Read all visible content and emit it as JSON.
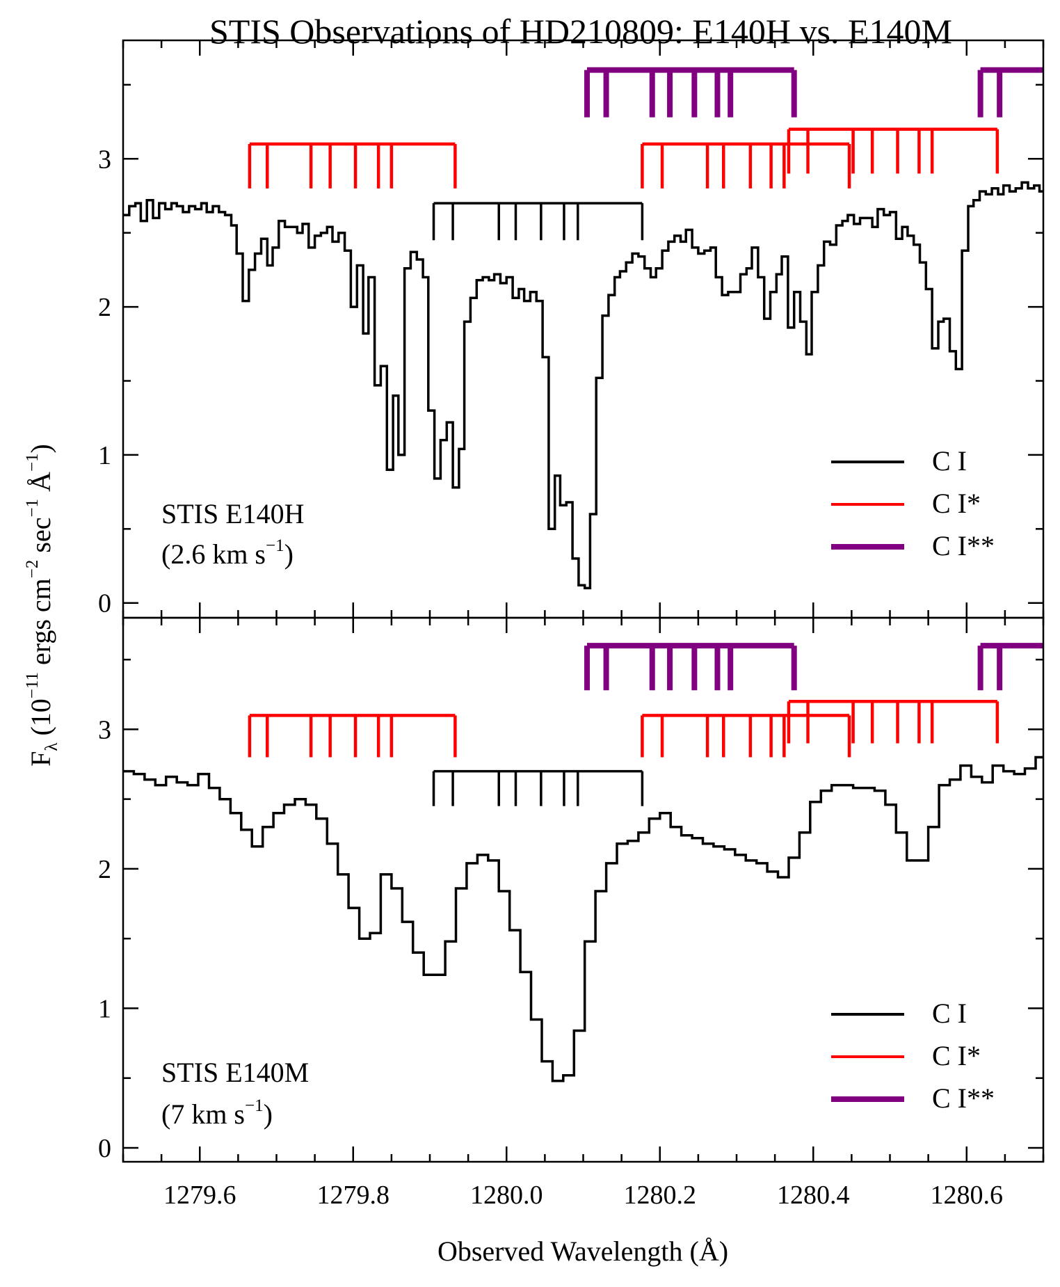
{
  "chart_data": [
    {
      "type": "line",
      "title": "STIS Observations of HD210809: E140H vs. E140M",
      "panel_label": "STIS E140H",
      "resolution_prefix": "(2.6 km s",
      "resolution_exp": "−1",
      "resolution_suffix": ")",
      "xlim": [
        1279.5,
        1280.7
      ],
      "ylim": [
        -0.1,
        3.8
      ],
      "xticks": [
        1279.6,
        1279.8,
        1280.0,
        1280.2,
        1280.4,
        1280.6
      ],
      "yticks": [
        0,
        1,
        2,
        3
      ],
      "series": [
        {
          "name": "E140H spectrum",
          "x": [
            1279.5,
            1279.508,
            1279.516,
            1279.523,
            1279.531,
            1279.539,
            1279.547,
            1279.555,
            1279.563,
            1279.57,
            1279.578,
            1279.586,
            1279.594,
            1279.602,
            1279.609,
            1279.617,
            1279.625,
            1279.633,
            1279.641,
            1279.648,
            1279.656,
            1279.664,
            1279.672,
            1279.68,
            1279.688,
            1279.695,
            1279.703,
            1279.711,
            1279.719,
            1279.727,
            1279.734,
            1279.742,
            1279.75,
            1279.758,
            1279.766,
            1279.773,
            1279.781,
            1279.789,
            1279.797,
            1279.805,
            1279.813,
            1279.82,
            1279.828,
            1279.836,
            1279.844,
            1279.852,
            1279.859,
            1279.867,
            1279.875,
            1279.883,
            1279.891,
            1279.898,
            1279.906,
            1279.914,
            1279.922,
            1279.93,
            1279.938,
            1279.945,
            1279.953,
            1279.961,
            1279.969,
            1279.977,
            1279.984,
            1279.992,
            1280.0,
            1280.008,
            1280.016,
            1280.023,
            1280.031,
            1280.039,
            1280.047,
            1280.055,
            1280.063,
            1280.07,
            1280.078,
            1280.086,
            1280.094,
            1280.102,
            1280.109,
            1280.117,
            1280.125,
            1280.133,
            1280.141,
            1280.148,
            1280.156,
            1280.164,
            1280.172,
            1280.18,
            1280.188,
            1280.195,
            1280.203,
            1280.211,
            1280.219,
            1280.227,
            1280.234,
            1280.242,
            1280.25,
            1280.258,
            1280.266,
            1280.273,
            1280.281,
            1280.289,
            1280.297,
            1280.305,
            1280.313,
            1280.32,
            1280.328,
            1280.336,
            1280.344,
            1280.352,
            1280.359,
            1280.367,
            1280.375,
            1280.383,
            1280.391,
            1280.398,
            1280.406,
            1280.414,
            1280.422,
            1280.43,
            1280.438,
            1280.445,
            1280.453,
            1280.461,
            1280.469,
            1280.477,
            1280.484,
            1280.492,
            1280.5,
            1280.508,
            1280.516,
            1280.523,
            1280.531,
            1280.539,
            1280.547,
            1280.555,
            1280.563,
            1280.57,
            1280.578,
            1280.586,
            1280.594,
            1280.602,
            1280.609,
            1280.617,
            1280.625,
            1280.633,
            1280.641,
            1280.648,
            1280.656,
            1280.664,
            1280.672,
            1280.68,
            1280.688,
            1280.695,
            1280.7
          ],
          "y": [
            2.62,
            2.68,
            2.7,
            2.58,
            2.72,
            2.6,
            2.7,
            2.66,
            2.7,
            2.68,
            2.64,
            2.68,
            2.66,
            2.7,
            2.64,
            2.68,
            2.64,
            2.62,
            2.55,
            2.36,
            2.04,
            2.25,
            2.36,
            2.46,
            2.28,
            2.4,
            2.58,
            2.54,
            2.54,
            2.5,
            2.56,
            2.4,
            2.48,
            2.5,
            2.54,
            2.44,
            2.5,
            2.38,
            2.0,
            2.28,
            1.82,
            2.2,
            1.47,
            1.6,
            0.9,
            1.4,
            1.0,
            2.26,
            2.37,
            2.32,
            2.2,
            1.3,
            0.84,
            1.1,
            1.22,
            0.78,
            1.04,
            1.9,
            2.06,
            2.18,
            2.2,
            2.18,
            2.22,
            2.16,
            2.2,
            2.06,
            2.12,
            2.04,
            2.1,
            2.04,
            1.66,
            0.5,
            0.86,
            0.66,
            0.68,
            0.3,
            0.12,
            0.1,
            0.6,
            1.52,
            1.94,
            2.08,
            2.2,
            2.24,
            2.3,
            2.36,
            2.34,
            2.26,
            2.2,
            2.26,
            2.38,
            2.44,
            2.48,
            2.44,
            2.52,
            2.4,
            2.36,
            2.38,
            2.4,
            2.2,
            2.08,
            2.1,
            2.1,
            2.22,
            2.26,
            2.4,
            2.2,
            1.92,
            2.1,
            2.22,
            2.34,
            1.86,
            2.1,
            1.9,
            1.68,
            2.1,
            2.28,
            2.44,
            2.42,
            2.55,
            2.58,
            2.62,
            2.56,
            2.6,
            2.6,
            2.54,
            2.66,
            2.62,
            2.64,
            2.46,
            2.54,
            2.48,
            2.42,
            2.3,
            2.12,
            1.72,
            1.9,
            1.92,
            1.7,
            1.58,
            2.38,
            2.68,
            2.72,
            2.78,
            2.76,
            2.8,
            2.76,
            2.82,
            2.78,
            2.8,
            2.84,
            2.8,
            2.82,
            2.78,
            2.82
          ]
        }
      ]
    },
    {
      "type": "line",
      "panel_label": "STIS E140M",
      "resolution_prefix": "(7 km s",
      "resolution_exp": "−1",
      "resolution_suffix": ")",
      "xlabel": "Observed Wavelength (Å)",
      "xlim": [
        1279.5,
        1280.7
      ],
      "ylim": [
        -0.1,
        3.8
      ],
      "xticks": [
        1279.6,
        1279.8,
        1280.0,
        1280.2,
        1280.4,
        1280.6
      ],
      "yticks": [
        0,
        1,
        2,
        3
      ],
      "series": [
        {
          "name": "E140M spectrum",
          "x": [
            1279.5,
            1279.514,
            1279.528,
            1279.542,
            1279.556,
            1279.57,
            1279.584,
            1279.598,
            1279.612,
            1279.626,
            1279.64,
            1279.654,
            1279.668,
            1279.682,
            1279.696,
            1279.71,
            1279.724,
            1279.738,
            1279.752,
            1279.766,
            1279.78,
            1279.794,
            1279.808,
            1279.822,
            1279.836,
            1279.85,
            1279.864,
            1279.878,
            1279.892,
            1279.906,
            1279.92,
            1279.934,
            1279.948,
            1279.962,
            1279.976,
            1279.99,
            1280.004,
            1280.018,
            1280.032,
            1280.046,
            1280.06,
            1280.074,
            1280.088,
            1280.102,
            1280.116,
            1280.13,
            1280.144,
            1280.158,
            1280.172,
            1280.186,
            1280.2,
            1280.214,
            1280.228,
            1280.242,
            1280.256,
            1280.27,
            1280.284,
            1280.298,
            1280.312,
            1280.326,
            1280.34,
            1280.354,
            1280.368,
            1280.382,
            1280.396,
            1280.41,
            1280.424,
            1280.438,
            1280.452,
            1280.466,
            1280.48,
            1280.494,
            1280.508,
            1280.522,
            1280.536,
            1280.55,
            1280.564,
            1280.578,
            1280.592,
            1280.606,
            1280.62,
            1280.634,
            1280.648,
            1280.662,
            1280.676,
            1280.69,
            1280.7
          ],
          "y": [
            2.7,
            2.68,
            2.64,
            2.6,
            2.66,
            2.62,
            2.6,
            2.68,
            2.58,
            2.5,
            2.4,
            2.28,
            2.16,
            2.3,
            2.4,
            2.46,
            2.5,
            2.46,
            2.36,
            2.18,
            1.96,
            1.72,
            1.5,
            1.54,
            1.96,
            1.86,
            1.62,
            1.4,
            1.24,
            1.24,
            1.48,
            1.86,
            2.04,
            2.1,
            2.06,
            1.84,
            1.56,
            1.26,
            0.92,
            0.62,
            0.48,
            0.52,
            0.84,
            1.48,
            1.84,
            2.04,
            2.18,
            2.2,
            2.26,
            2.36,
            2.4,
            2.3,
            2.24,
            2.22,
            2.18,
            2.16,
            2.14,
            2.1,
            2.06,
            2.04,
            1.98,
            1.94,
            2.08,
            2.26,
            2.48,
            2.56,
            2.6,
            2.6,
            2.58,
            2.58,
            2.56,
            2.46,
            2.26,
            2.06,
            2.06,
            2.3,
            2.6,
            2.64,
            2.74,
            2.66,
            2.62,
            2.74,
            2.7,
            2.68,
            2.72,
            2.8,
            2.68
          ]
        }
      ]
    }
  ],
  "axes": {
    "ylabel_prefix": "F",
    "ylabel_sub": "λ",
    "ylabel_mid1": " (10",
    "ylabel_exp1": "−11",
    "ylabel_mid2": " ergs cm",
    "ylabel_exp2": "−2",
    "ylabel_mid3": " sec",
    "ylabel_exp3": "−1",
    "ylabel_mid4": " Å",
    "ylabel_exp4": "−1",
    "ylabel_end": ")"
  },
  "line_markers": {
    "colors": {
      "ci": "#000000",
      "cistar": "#ff0000",
      "cistar2": "#800080"
    },
    "ci": {
      "bar_y": 2.7,
      "tick_y": 2.45,
      "groups": [
        [
          1279.905,
          1279.93,
          1279.99,
          1280.012,
          1280.045,
          1280.075,
          1280.093,
          1280.177
        ]
      ]
    },
    "cistar": {
      "bar_y": 3.1,
      "tick_y": 2.8,
      "groups": [
        [
          1279.665,
          1279.688,
          1279.745,
          1279.77,
          1279.803,
          1279.833,
          1279.85,
          1279.933
        ],
        [
          1280.177,
          1280.203,
          1280.262,
          1280.283,
          1280.318,
          1280.345,
          1280.362,
          1280.447
        ]
      ]
    },
    "cistar_b": {
      "bar_y": 3.2,
      "tick_y": 2.9,
      "groups": [
        [
          1280.368,
          1280.393,
          1280.452,
          1280.477,
          1280.51,
          1280.538,
          1280.555,
          1280.64
        ]
      ]
    },
    "cistar2": {
      "bar_y": 3.6,
      "tick_y": 3.28,
      "groups": [
        [
          1280.105,
          1280.13,
          1280.19,
          1280.213,
          1280.245,
          1280.275,
          1280.292,
          1280.375
        ],
        [
          1280.618,
          1280.643,
          1280.7
        ]
      ]
    }
  },
  "legend": {
    "items": [
      {
        "label": "C I",
        "color": "#000000"
      },
      {
        "label": "C I*",
        "color": "#ff0000"
      },
      {
        "label": "C I**",
        "color": "#800080"
      }
    ]
  }
}
